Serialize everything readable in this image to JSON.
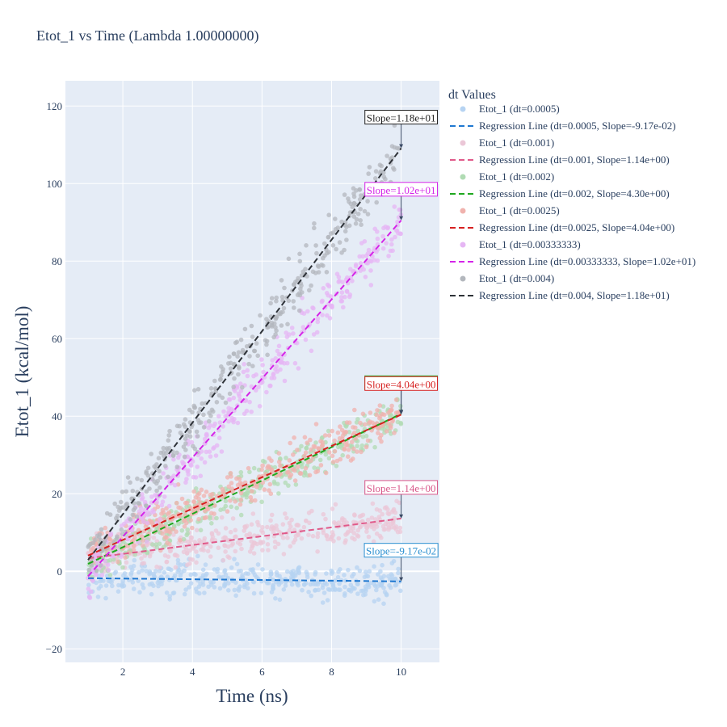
{
  "chart_data": {
    "type": "scatter",
    "title": "Etot_1 vs Time (Lambda 1.00000000)",
    "xlabel": "Time (ns)",
    "ylabel": "Etot_1 (kcal/mol)",
    "xlim": [
      0.35,
      11.1
    ],
    "ylim": [
      -23.5,
      126.5
    ],
    "xticks": [
      2,
      4,
      6,
      8,
      10
    ],
    "yticks": [
      -20,
      0,
      20,
      40,
      60,
      80,
      100,
      120
    ],
    "grid": true,
    "plot_bgcolor": "#e5ecf6",
    "legend": {
      "title": "dt Values",
      "placement": "right"
    },
    "series": [
      {
        "dt": "0.0005",
        "scatter_name": "Etot_1 (dt=0.0005)",
        "line_name": "Regression Line (dt=0.0005, Slope=-9.17e-02)",
        "slope": -0.0917,
        "intercept": -1.7,
        "noise": 3.2,
        "marker_color": "#b6d3f2",
        "line_color": "#1f78d1",
        "annotation": "Slope=-9.17e-02",
        "annot_color": "#2a8fd0",
        "arrow_x": 10,
        "arrow_y": -2.6
      },
      {
        "dt": "0.001",
        "scatter_name": "Etot_1 (dt=0.001)",
        "line_name": "Regression Line (dt=0.001, Slope=1.14e+00)",
        "slope": 1.14,
        "intercept": 2.2,
        "noise": 3.5,
        "marker_color": "#ebc7d7",
        "line_color": "#e05a8a",
        "annotation": "Slope=1.14e+00",
        "annot_color": "#d8588a",
        "arrow_x": 10,
        "arrow_y": 13.6
      },
      {
        "dt": "0.002",
        "scatter_name": "Etot_1 (dt=0.002)",
        "line_name": "Regression Line (dt=0.002, Slope=4.30e+00)",
        "slope": 4.3,
        "intercept": -2.4,
        "noise": 3.8,
        "marker_color": "#b0dbb3",
        "line_color": "#1fa81f",
        "annotation": "Slope=4.30e+00",
        "annot_color": "#1fa81f",
        "arrow_x": 10,
        "arrow_y": 40.6
      },
      {
        "dt": "0.0025",
        "scatter_name": "Etot_1 (dt=0.0025)",
        "line_name": "Regression Line (dt=0.0025, Slope=4.04e+00)",
        "slope": 4.04,
        "intercept": 0,
        "noise": 3.8,
        "marker_color": "#f0b2ad",
        "line_color": "#d62020",
        "annotation": "Slope=4.04e+00",
        "annot_color": "#d62020",
        "arrow_x": 10,
        "arrow_y": 40.4
      },
      {
        "dt": "0.00333333",
        "scatter_name": "Etot_1 (dt=0.00333333)",
        "line_name": "Regression Line (dt=0.00333333, Slope=1.02e+01)",
        "slope": 10.2,
        "intercept": -11.5,
        "noise": 4.5,
        "marker_color": "#e6b6f4",
        "line_color": "#d424e8",
        "annotation": "Slope=1.02e+01",
        "annot_color": "#d424e8",
        "arrow_x": 10,
        "arrow_y": 90.5
      },
      {
        "dt": "0.004",
        "scatter_name": "Etot_1 (dt=0.004)",
        "line_name": "Regression Line (dt=0.004, Slope=1.18e+01)",
        "slope": 11.8,
        "intercept": -8.9,
        "noise": 5,
        "marker_color": "#b3b7bd",
        "line_color": "#2e3238",
        "annotation": "Slope=1.18e+01",
        "annot_color": "#222222",
        "arrow_x": 10,
        "arrow_y": 109.1
      }
    ]
  }
}
